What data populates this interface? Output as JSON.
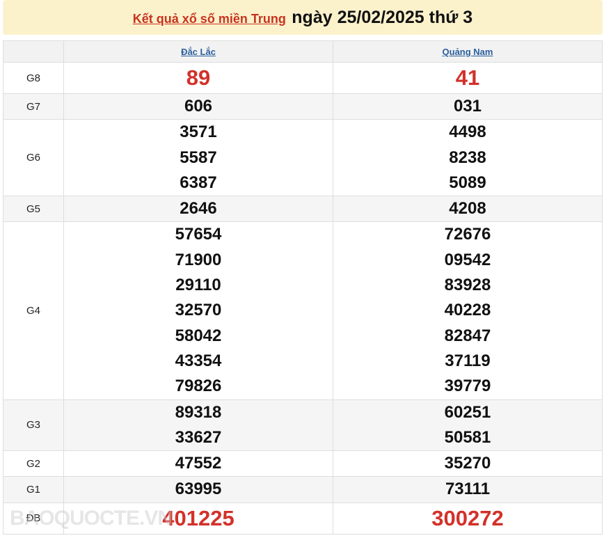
{
  "header": {
    "link": "Kết quả xổ số miền Trung",
    "date": "ngày 25/02/2025 thứ 3"
  },
  "provinces": [
    "Đắc Lắc",
    "Quảng Nam"
  ],
  "prizes": [
    {
      "label": "G8",
      "a": [
        "89"
      ],
      "b": [
        "41"
      ],
      "highlight": true
    },
    {
      "label": "G7",
      "a": [
        "606"
      ],
      "b": [
        "031"
      ]
    },
    {
      "label": "G6",
      "a": [
        "3571",
        "5587",
        "6387"
      ],
      "b": [
        "4498",
        "8238",
        "5089"
      ]
    },
    {
      "label": "G5",
      "a": [
        "2646"
      ],
      "b": [
        "4208"
      ]
    },
    {
      "label": "G4",
      "a": [
        "57654",
        "71900",
        "29110",
        "32570",
        "58042",
        "43354",
        "79826"
      ],
      "b": [
        "72676",
        "09542",
        "83928",
        "40228",
        "82847",
        "37119",
        "39779"
      ]
    },
    {
      "label": "G3",
      "a": [
        "89318",
        "33627"
      ],
      "b": [
        "60251",
        "50581"
      ]
    },
    {
      "label": "G2",
      "a": [
        "47552"
      ],
      "b": [
        "35270"
      ]
    },
    {
      "label": "G1",
      "a": [
        "63995"
      ],
      "b": [
        "73111"
      ]
    },
    {
      "label": "ĐB",
      "a": [
        "401225"
      ],
      "b": [
        "300272"
      ],
      "highlight": true
    }
  ],
  "watermark": "BAOQUOCTE.VN",
  "colors": {
    "accent": "#d2312a",
    "header_bg": "#fbf2cc",
    "link": "#2a5f9e"
  }
}
